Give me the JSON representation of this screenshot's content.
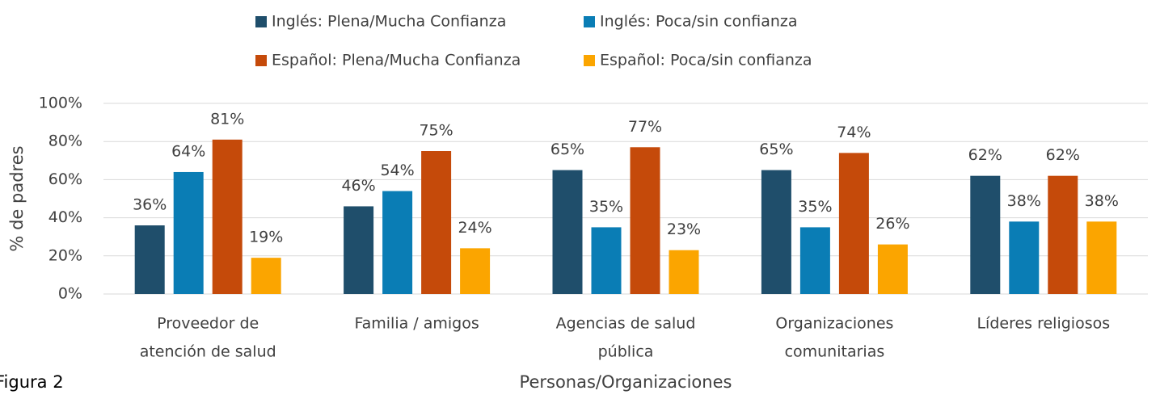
{
  "chart_data": {
    "type": "bar",
    "caption": "Figura 2",
    "x_label": "Personas/Organizaciones",
    "y_label": "% de padres",
    "categories": [
      [
        "Proveedor de",
        "atención de salud"
      ],
      [
        "Familia / amigos"
      ],
      [
        "Agencias de salud",
        "pública"
      ],
      [
        "Organizaciones",
        "comunitarias"
      ],
      [
        "Líderes religiosos"
      ]
    ],
    "series": [
      {
        "name": "Inglés:  Plena/Mucha Confianza",
        "color": "#1f4e6b",
        "values": [
          36,
          46,
          65,
          65,
          62
        ],
        "value_labels": [
          "36%",
          "46%",
          "65%",
          "65%",
          "62%"
        ]
      },
      {
        "name": "Inglés:  Poca/sin confianza",
        "color": "#0a7db5",
        "values": [
          64,
          54,
          35,
          35,
          38
        ],
        "value_labels": [
          "64%",
          "54%",
          "35%",
          "35%",
          "38%"
        ]
      },
      {
        "name": "Español: Plena/Mucha Confianza",
        "color": "#c54a0a",
        "values": [
          81,
          75,
          77,
          74,
          62
        ],
        "value_labels": [
          "81%",
          "75%",
          "77%",
          "74%",
          "62%"
        ]
      },
      {
        "name": "Español: Poca/sin confianza",
        "color": "#fba500",
        "values": [
          19,
          24,
          23,
          26,
          38
        ],
        "value_labels": [
          "19%",
          "24%",
          "23%",
          "26%",
          "38%"
        ]
      }
    ],
    "ylim": [
      0,
      100
    ],
    "yticks": [
      {
        "value": 0,
        "label": "0%"
      },
      {
        "value": 20,
        "label": "20%"
      },
      {
        "value": 40,
        "label": "40%"
      },
      {
        "value": 60,
        "label": "60%"
      },
      {
        "value": 80,
        "label": "80%"
      },
      {
        "value": 100,
        "label": "100%"
      }
    ],
    "grid": true,
    "legend": "top"
  }
}
